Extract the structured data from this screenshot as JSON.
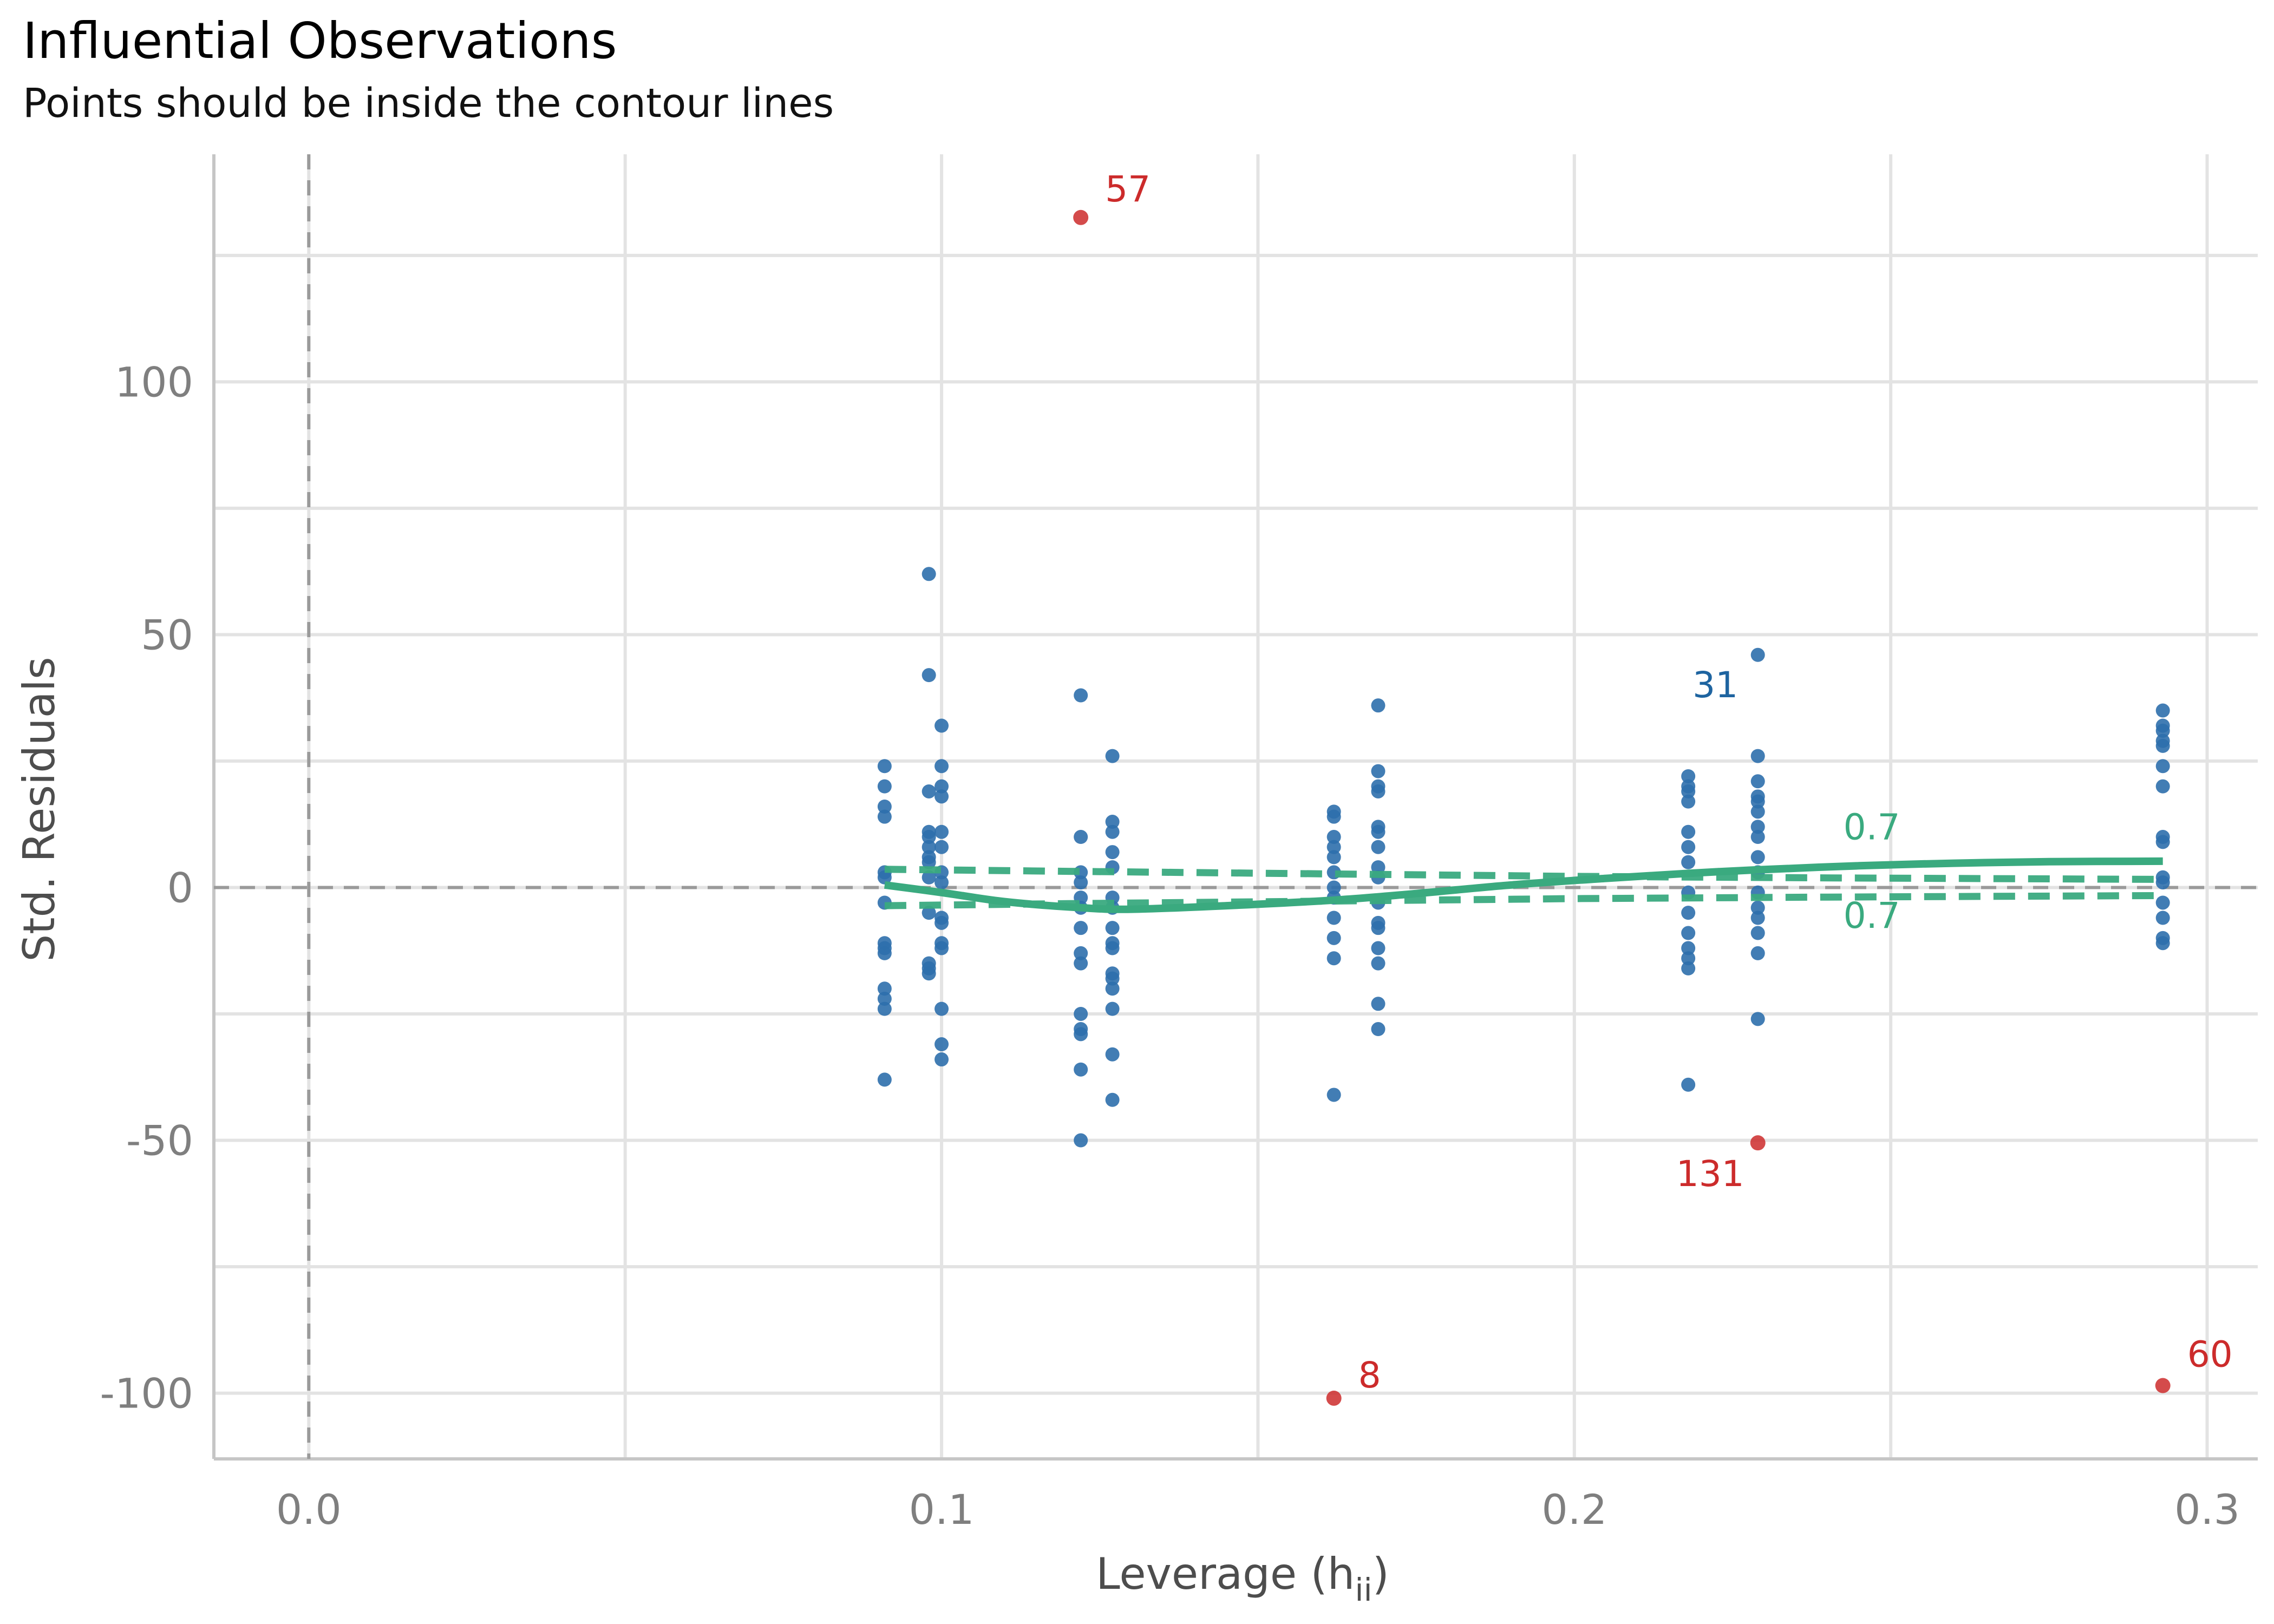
{
  "chart_data": {
    "type": "scatter",
    "title": "Influential Observations",
    "subtitle": "Points should be inside the contour lines",
    "xlabel": "Leverage (h",
    "xlabel_subscript": "ii",
    "xlabel_close": ")",
    "ylabel": "Std. Residuals",
    "xlim": [
      -0.015,
      0.308
    ],
    "ylim": [
      -113,
      145
    ],
    "x_ticks": [
      0.0,
      0.1,
      0.2,
      0.3
    ],
    "x_tick_labels": [
      "0.0",
      "0.1",
      "0.2",
      "0.3"
    ],
    "y_ticks": [
      -100,
      -50,
      0,
      50,
      100
    ],
    "y_tick_labels": [
      "-100",
      "-50",
      "0",
      "50",
      "100"
    ],
    "grid": true,
    "colors": {
      "normal_point": "#2e6fac",
      "influential_point": "#cc2b2b",
      "smooth_line": "#3aaa7f",
      "contour_line": "#3aaa7f",
      "normal_label": "#1e64a0",
      "reference_line": "#9a9a9a"
    },
    "points": [
      {
        "x": 0.091,
        "y": 24
      },
      {
        "x": 0.091,
        "y": 20
      },
      {
        "x": 0.091,
        "y": 16
      },
      {
        "x": 0.091,
        "y": 14
      },
      {
        "x": 0.091,
        "y": 3
      },
      {
        "x": 0.091,
        "y": 2
      },
      {
        "x": 0.091,
        "y": -3
      },
      {
        "x": 0.091,
        "y": -11
      },
      {
        "x": 0.091,
        "y": -12
      },
      {
        "x": 0.091,
        "y": -13
      },
      {
        "x": 0.091,
        "y": -20
      },
      {
        "x": 0.091,
        "y": -22
      },
      {
        "x": 0.091,
        "y": -24
      },
      {
        "x": 0.091,
        "y": -38
      },
      {
        "x": 0.098,
        "y": 62
      },
      {
        "x": 0.098,
        "y": 42
      },
      {
        "x": 0.098,
        "y": 19
      },
      {
        "x": 0.098,
        "y": 11
      },
      {
        "x": 0.098,
        "y": 10
      },
      {
        "x": 0.098,
        "y": 8
      },
      {
        "x": 0.098,
        "y": 6
      },
      {
        "x": 0.098,
        "y": 5
      },
      {
        "x": 0.098,
        "y": 2
      },
      {
        "x": 0.098,
        "y": -5
      },
      {
        "x": 0.098,
        "y": -15
      },
      {
        "x": 0.098,
        "y": -16
      },
      {
        "x": 0.098,
        "y": -17
      },
      {
        "x": 0.1,
        "y": 32
      },
      {
        "x": 0.1,
        "y": 24
      },
      {
        "x": 0.1,
        "y": 20
      },
      {
        "x": 0.1,
        "y": 18
      },
      {
        "x": 0.1,
        "y": 11
      },
      {
        "x": 0.1,
        "y": 8
      },
      {
        "x": 0.1,
        "y": 3
      },
      {
        "x": 0.1,
        "y": 1
      },
      {
        "x": 0.1,
        "y": -6
      },
      {
        "x": 0.1,
        "y": -7
      },
      {
        "x": 0.1,
        "y": -11
      },
      {
        "x": 0.1,
        "y": -12
      },
      {
        "x": 0.1,
        "y": -24
      },
      {
        "x": 0.1,
        "y": -31
      },
      {
        "x": 0.1,
        "y": -34
      },
      {
        "x": 0.122,
        "y": 38
      },
      {
        "x": 0.122,
        "y": 10
      },
      {
        "x": 0.122,
        "y": 3
      },
      {
        "x": 0.122,
        "y": 1
      },
      {
        "x": 0.122,
        "y": -2
      },
      {
        "x": 0.122,
        "y": -4
      },
      {
        "x": 0.122,
        "y": -8
      },
      {
        "x": 0.122,
        "y": -13
      },
      {
        "x": 0.122,
        "y": -15
      },
      {
        "x": 0.122,
        "y": -25
      },
      {
        "x": 0.122,
        "y": -28
      },
      {
        "x": 0.122,
        "y": -29
      },
      {
        "x": 0.122,
        "y": -36
      },
      {
        "x": 0.122,
        "y": -50
      },
      {
        "x": 0.127,
        "y": 26
      },
      {
        "x": 0.127,
        "y": 13
      },
      {
        "x": 0.127,
        "y": 11
      },
      {
        "x": 0.127,
        "y": 7
      },
      {
        "x": 0.127,
        "y": 4
      },
      {
        "x": 0.127,
        "y": -2
      },
      {
        "x": 0.127,
        "y": -4
      },
      {
        "x": 0.127,
        "y": -8
      },
      {
        "x": 0.127,
        "y": -11
      },
      {
        "x": 0.127,
        "y": -12
      },
      {
        "x": 0.127,
        "y": -17
      },
      {
        "x": 0.127,
        "y": -18
      },
      {
        "x": 0.127,
        "y": -20
      },
      {
        "x": 0.127,
        "y": -24
      },
      {
        "x": 0.127,
        "y": -33
      },
      {
        "x": 0.127,
        "y": -42
      },
      {
        "x": 0.162,
        "y": 15
      },
      {
        "x": 0.162,
        "y": 14
      },
      {
        "x": 0.162,
        "y": 10
      },
      {
        "x": 0.162,
        "y": 8
      },
      {
        "x": 0.162,
        "y": 6
      },
      {
        "x": 0.162,
        "y": 3
      },
      {
        "x": 0.162,
        "y": 0
      },
      {
        "x": 0.162,
        "y": -2
      },
      {
        "x": 0.162,
        "y": -6
      },
      {
        "x": 0.162,
        "y": -10
      },
      {
        "x": 0.162,
        "y": -14
      },
      {
        "x": 0.162,
        "y": -41
      },
      {
        "x": 0.169,
        "y": 36
      },
      {
        "x": 0.169,
        "y": 23
      },
      {
        "x": 0.169,
        "y": 20
      },
      {
        "x": 0.169,
        "y": 19
      },
      {
        "x": 0.169,
        "y": 12
      },
      {
        "x": 0.169,
        "y": 11
      },
      {
        "x": 0.169,
        "y": 8
      },
      {
        "x": 0.169,
        "y": 4
      },
      {
        "x": 0.169,
        "y": 2
      },
      {
        "x": 0.169,
        "y": -3
      },
      {
        "x": 0.169,
        "y": -7
      },
      {
        "x": 0.169,
        "y": -8
      },
      {
        "x": 0.169,
        "y": -12
      },
      {
        "x": 0.169,
        "y": -15
      },
      {
        "x": 0.169,
        "y": -23
      },
      {
        "x": 0.169,
        "y": -28
      },
      {
        "x": 0.218,
        "y": 22
      },
      {
        "x": 0.218,
        "y": 20
      },
      {
        "x": 0.218,
        "y": 19
      },
      {
        "x": 0.218,
        "y": 17
      },
      {
        "x": 0.218,
        "y": 11
      },
      {
        "x": 0.218,
        "y": 8
      },
      {
        "x": 0.218,
        "y": 5
      },
      {
        "x": 0.218,
        "y": -1
      },
      {
        "x": 0.218,
        "y": -5
      },
      {
        "x": 0.218,
        "y": -9
      },
      {
        "x": 0.218,
        "y": -12
      },
      {
        "x": 0.218,
        "y": -14
      },
      {
        "x": 0.218,
        "y": -16
      },
      {
        "x": 0.218,
        "y": -39
      },
      {
        "x": 0.229,
        "y": 46
      },
      {
        "x": 0.229,
        "y": 26
      },
      {
        "x": 0.229,
        "y": 21
      },
      {
        "x": 0.229,
        "y": 18
      },
      {
        "x": 0.229,
        "y": 17
      },
      {
        "x": 0.229,
        "y": 15
      },
      {
        "x": 0.229,
        "y": 12
      },
      {
        "x": 0.229,
        "y": 10
      },
      {
        "x": 0.229,
        "y": 6
      },
      {
        "x": 0.229,
        "y": 3
      },
      {
        "x": 0.229,
        "y": -1
      },
      {
        "x": 0.229,
        "y": -4
      },
      {
        "x": 0.229,
        "y": -6
      },
      {
        "x": 0.229,
        "y": -9
      },
      {
        "x": 0.229,
        "y": -13
      },
      {
        "x": 0.229,
        "y": -26
      },
      {
        "x": 0.293,
        "y": 35
      },
      {
        "x": 0.293,
        "y": 32
      },
      {
        "x": 0.293,
        "y": 31
      },
      {
        "x": 0.293,
        "y": 29
      },
      {
        "x": 0.293,
        "y": 28
      },
      {
        "x": 0.293,
        "y": 24
      },
      {
        "x": 0.293,
        "y": 20
      },
      {
        "x": 0.293,
        "y": 10
      },
      {
        "x": 0.293,
        "y": 9
      },
      {
        "x": 0.293,
        "y": 2
      },
      {
        "x": 0.293,
        "y": 1
      },
      {
        "x": 0.293,
        "y": -3
      },
      {
        "x": 0.293,
        "y": -6
      },
      {
        "x": 0.293,
        "y": -10
      },
      {
        "x": 0.293,
        "y": -11
      }
    ],
    "influential_points": [
      {
        "x": 0.122,
        "y": 132.5,
        "label": "57"
      },
      {
        "x": 0.162,
        "y": -101,
        "label": "8"
      },
      {
        "x": 0.229,
        "y": -50.5,
        "label": "131"
      },
      {
        "x": 0.293,
        "y": -98.5,
        "label": "60"
      }
    ],
    "normal_labels": [
      {
        "x": 0.218,
        "y": 40,
        "label": "31"
      }
    ],
    "smooth_line": [
      {
        "x": 0.091,
        "y": 0.5
      },
      {
        "x": 0.1,
        "y": -1
      },
      {
        "x": 0.11,
        "y": -2.8
      },
      {
        "x": 0.122,
        "y": -4
      },
      {
        "x": 0.13,
        "y": -4.3
      },
      {
        "x": 0.145,
        "y": -3.6
      },
      {
        "x": 0.162,
        "y": -2.5
      },
      {
        "x": 0.175,
        "y": -1.2
      },
      {
        "x": 0.19,
        "y": 0.5
      },
      {
        "x": 0.205,
        "y": 1.8
      },
      {
        "x": 0.218,
        "y": 2.8
      },
      {
        "x": 0.229,
        "y": 3.5
      },
      {
        "x": 0.245,
        "y": 4.3
      },
      {
        "x": 0.26,
        "y": 4.8
      },
      {
        "x": 0.275,
        "y": 5.1
      },
      {
        "x": 0.293,
        "y": 5.2
      }
    ],
    "contours": [
      {
        "label": "0.7",
        "points": [
          {
            "x": 0.091,
            "y": 3.6
          },
          {
            "x": 0.12,
            "y": 3.2
          },
          {
            "x": 0.16,
            "y": 2.7
          },
          {
            "x": 0.2,
            "y": 2.2
          },
          {
            "x": 0.24,
            "y": 1.9
          },
          {
            "x": 0.293,
            "y": 1.6
          }
        ]
      },
      {
        "label": "0.7",
        "points": [
          {
            "x": 0.091,
            "y": -3.6
          },
          {
            "x": 0.12,
            "y": -3.2
          },
          {
            "x": 0.16,
            "y": -2.7
          },
          {
            "x": 0.2,
            "y": -2.2
          },
          {
            "x": 0.24,
            "y": -1.9
          },
          {
            "x": 0.293,
            "y": -1.6
          }
        ]
      }
    ]
  }
}
